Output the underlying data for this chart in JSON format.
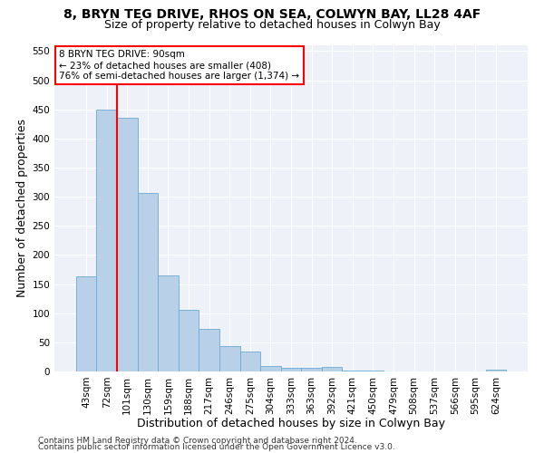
{
  "title1": "8, BRYN TEG DRIVE, RHOS ON SEA, COLWYN BAY, LL28 4AF",
  "title2": "Size of property relative to detached houses in Colwyn Bay",
  "xlabel": "Distribution of detached houses by size in Colwyn Bay",
  "ylabel": "Number of detached properties",
  "categories": [
    "43sqm",
    "72sqm",
    "101sqm",
    "130sqm",
    "159sqm",
    "188sqm",
    "217sqm",
    "246sqm",
    "275sqm",
    "304sqm",
    "333sqm",
    "363sqm",
    "392sqm",
    "421sqm",
    "450sqm",
    "479sqm",
    "508sqm",
    "537sqm",
    "566sqm",
    "595sqm",
    "624sqm"
  ],
  "values": [
    163,
    450,
    435,
    306,
    165,
    106,
    73,
    44,
    35,
    9,
    6,
    6,
    8,
    1,
    1,
    0,
    0,
    0,
    0,
    0,
    3
  ],
  "bar_color": "#b8d0e8",
  "bar_edge_color": "#6aaad4",
  "bar_width": 1.0,
  "vline_x_index": 1.5,
  "vline_color": "red",
  "annotation_line1": "8 BRYN TEG DRIVE: 90sqm",
  "annotation_line2": "← 23% of detached houses are smaller (408)",
  "annotation_line3": "76% of semi-detached houses are larger (1,374) →",
  "annotation_box_color": "white",
  "annotation_box_edge_color": "red",
  "ylim": [
    0,
    560
  ],
  "yticks": [
    0,
    50,
    100,
    150,
    200,
    250,
    300,
    350,
    400,
    450,
    500,
    550
  ],
  "footer1": "Contains HM Land Registry data © Crown copyright and database right 2024.",
  "footer2": "Contains public sector information licensed under the Open Government Licence v3.0.",
  "bg_color": "#eef2f8",
  "grid_color": "#ffffff",
  "title1_fontsize": 10,
  "title2_fontsize": 9,
  "axis_label_fontsize": 9,
  "tick_fontsize": 7.5,
  "annotation_fontsize": 7.5,
  "footer_fontsize": 6.5
}
